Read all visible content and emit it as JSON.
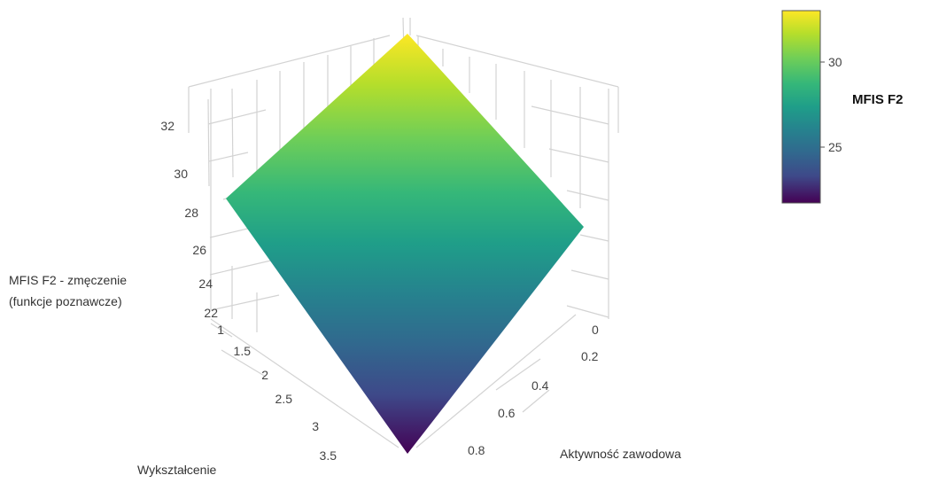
{
  "chart_data": {
    "type": "surface",
    "zlabel_lines": [
      "MFIS F2 - zmęczenie",
      "(funkcje poznawcze)"
    ],
    "xlabel": "Wykształcenie",
    "ylabel": "Aktywność zawodowa",
    "z_ticks": [
      22,
      24,
      26,
      28,
      30,
      32
    ],
    "x_ticks": [
      "1",
      "1.5",
      "2",
      "2.5",
      "3",
      "3.5"
    ],
    "y_ticks": [
      "0",
      "0.2",
      "0.4",
      "0.6",
      "0.8"
    ],
    "surface_corners": [
      {
        "wyksztalcenie": 1,
        "aktywnosc_zawodowa": 0,
        "mfis_f2": 27.6
      },
      {
        "wyksztalcenie": 4,
        "aktywnosc_zawodowa": 0,
        "mfis_f2": 32.9
      },
      {
        "wyksztalcenie": 1,
        "aktywnosc_zawodowa": 1,
        "mfis_f2": 21.6
      },
      {
        "wyksztalcenie": 4,
        "aktywnosc_zawodowa": 1,
        "mfis_f2": 27.0
      }
    ],
    "colorscale": "viridis",
    "colorbar": {
      "title": "MFIS F2",
      "ticks": [
        "30",
        "25"
      ],
      "range": [
        21.6,
        32.9
      ]
    }
  }
}
